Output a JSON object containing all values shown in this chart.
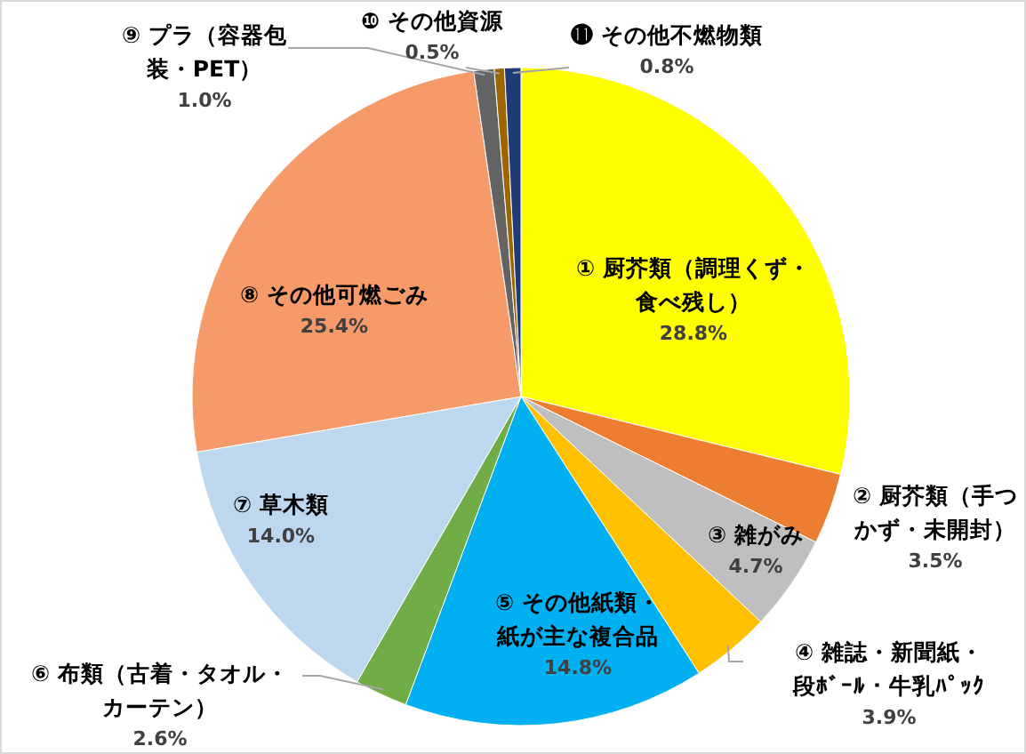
{
  "chart_data": {
    "type": "pie",
    "categories": [
      "① 厨芥類（調理くず・食べ残し）",
      "② 厨芥類（手つかず・未開封）",
      "③ 雑がみ",
      "④ 雑誌・新聞紙・段ﾎﾞｰﾙ・牛乳ﾊﾟｯｸ",
      "⑤ その他紙類・紙が主な複合品",
      "⑥ 布類（古着・タオル・カーテン）",
      "⑦ 草木類",
      "⑧ その他可燃ごみ",
      "⑨ プラ（容器包装・PET）",
      "❿ その他資源",
      "⓫ その他不燃物類"
    ],
    "values": [
      28.8,
      3.5,
      4.7,
      3.9,
      14.8,
      2.6,
      14.0,
      25.4,
      1.0,
      0.5,
      0.8
    ],
    "colors": [
      "#ffff00",
      "#ed7d31",
      "#bfbfbf",
      "#ffc000",
      "#00b0f0",
      "#70ad47",
      "#bdd7ee",
      "#f79a6a",
      "#636363",
      "#9c6500",
      "#1f3c78"
    ],
    "value_labels": [
      "28.8%",
      "3.5%",
      "4.7%",
      "3.9%",
      "14.8%",
      "2.6%",
      "14.0%",
      "25.4%",
      "1.0%",
      "0.5%",
      "0.8%"
    ]
  }
}
